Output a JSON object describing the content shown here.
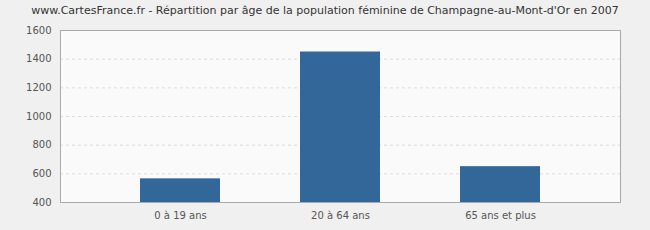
{
  "chart_data": {
    "type": "bar",
    "title": "www.CartesFrance.fr - Répartition par âge de la population féminine de Champagne-au-Mont-d'Or en 2007",
    "categories": [
      "0 à 19 ans",
      "20 à 64 ans",
      "65 ans et plus"
    ],
    "values": [
      565,
      1450,
      650
    ],
    "color": "#336699",
    "ylim": [
      400,
      1600
    ],
    "yticks": [
      400,
      600,
      800,
      1000,
      1200,
      1400,
      1600
    ],
    "grid": true
  }
}
